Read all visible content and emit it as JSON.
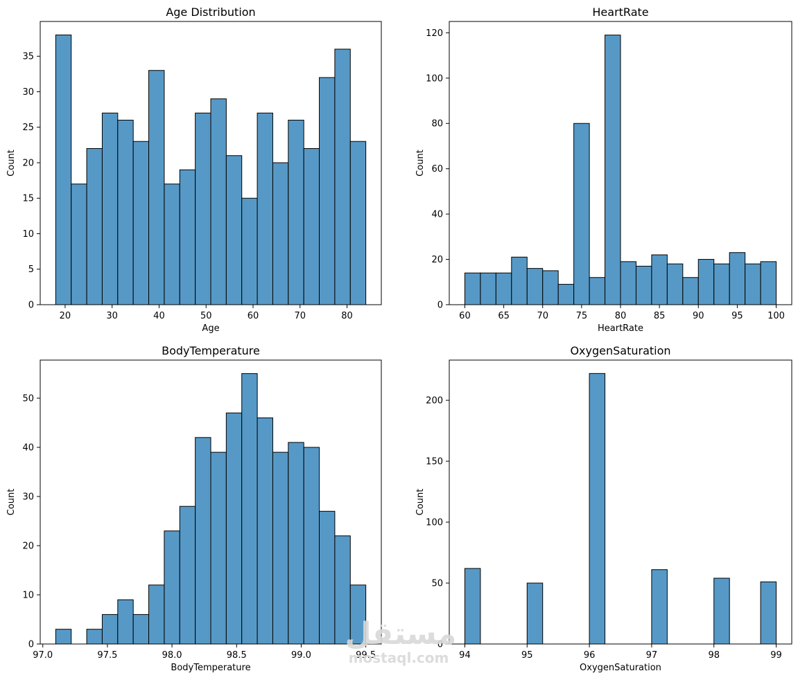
{
  "chart_data": [
    {
      "type": "bar",
      "title": "Age Distribution",
      "xlabel": "Age",
      "ylabel": "Count",
      "xlim": [
        14.7,
        87.3
      ],
      "ylim": [
        0,
        39.9
      ],
      "xticks": [
        20,
        30,
        40,
        50,
        60,
        70,
        80
      ],
      "yticks": [
        0,
        5,
        10,
        15,
        20,
        25,
        30,
        35
      ],
      "bin_start": 18,
      "bin_width": 3.3,
      "values": [
        38,
        17,
        22,
        27,
        26,
        23,
        33,
        17,
        19,
        27,
        29,
        21,
        15,
        27,
        20,
        26,
        22,
        32,
        36,
        23
      ]
    },
    {
      "type": "bar",
      "title": "HeartRate",
      "xlabel": "HeartRate",
      "ylabel": "Count",
      "xlim": [
        58,
        102
      ],
      "ylim": [
        0,
        125
      ],
      "xticks": [
        60,
        65,
        70,
        75,
        80,
        85,
        90,
        95,
        100
      ],
      "yticks": [
        0,
        20,
        40,
        60,
        80,
        100,
        120
      ],
      "bin_start": 60,
      "bin_width": 2,
      "values": [
        14,
        14,
        14,
        21,
        16,
        15,
        9,
        80,
        12,
        119,
        19,
        17,
        22,
        18,
        12,
        20,
        18,
        23,
        18,
        19
      ]
    },
    {
      "type": "bar",
      "title": "BodyTemperature",
      "xlabel": "BodyTemperature",
      "ylabel": "Count",
      "xlim": [
        96.98,
        99.62
      ],
      "ylim": [
        0,
        57.75
      ],
      "xticks": [
        97.0,
        97.5,
        98.0,
        98.5,
        99.0,
        99.5
      ],
      "xtick_labels": [
        "97.0",
        "97.5",
        "98.0",
        "98.5",
        "99.0",
        "99.5"
      ],
      "yticks": [
        0,
        10,
        20,
        30,
        40,
        50
      ],
      "bin_start": 97.1,
      "bin_width": 0.12,
      "values": [
        3,
        0,
        3,
        6,
        9,
        6,
        12,
        23,
        28,
        42,
        39,
        47,
        55,
        46,
        39,
        41,
        40,
        27,
        22,
        12
      ]
    },
    {
      "type": "bar",
      "title": "OxygenSaturation",
      "xlabel": "OxygenSaturation",
      "ylabel": "Count",
      "xlim": [
        93.75,
        99.25
      ],
      "ylim": [
        0,
        233
      ],
      "xticks": [
        94,
        95,
        96,
        97,
        98,
        99
      ],
      "yticks": [
        0,
        50,
        100,
        150,
        200
      ],
      "bin_start": 94,
      "bin_width": 0.25,
      "values": [
        62,
        0,
        0,
        0,
        50,
        0,
        0,
        0,
        222,
        0,
        0,
        0,
        61,
        0,
        0,
        0,
        54,
        0,
        0,
        51
      ]
    }
  ],
  "watermark": {
    "logo_text": "مستقل",
    "site_text": "mostaql.com"
  }
}
